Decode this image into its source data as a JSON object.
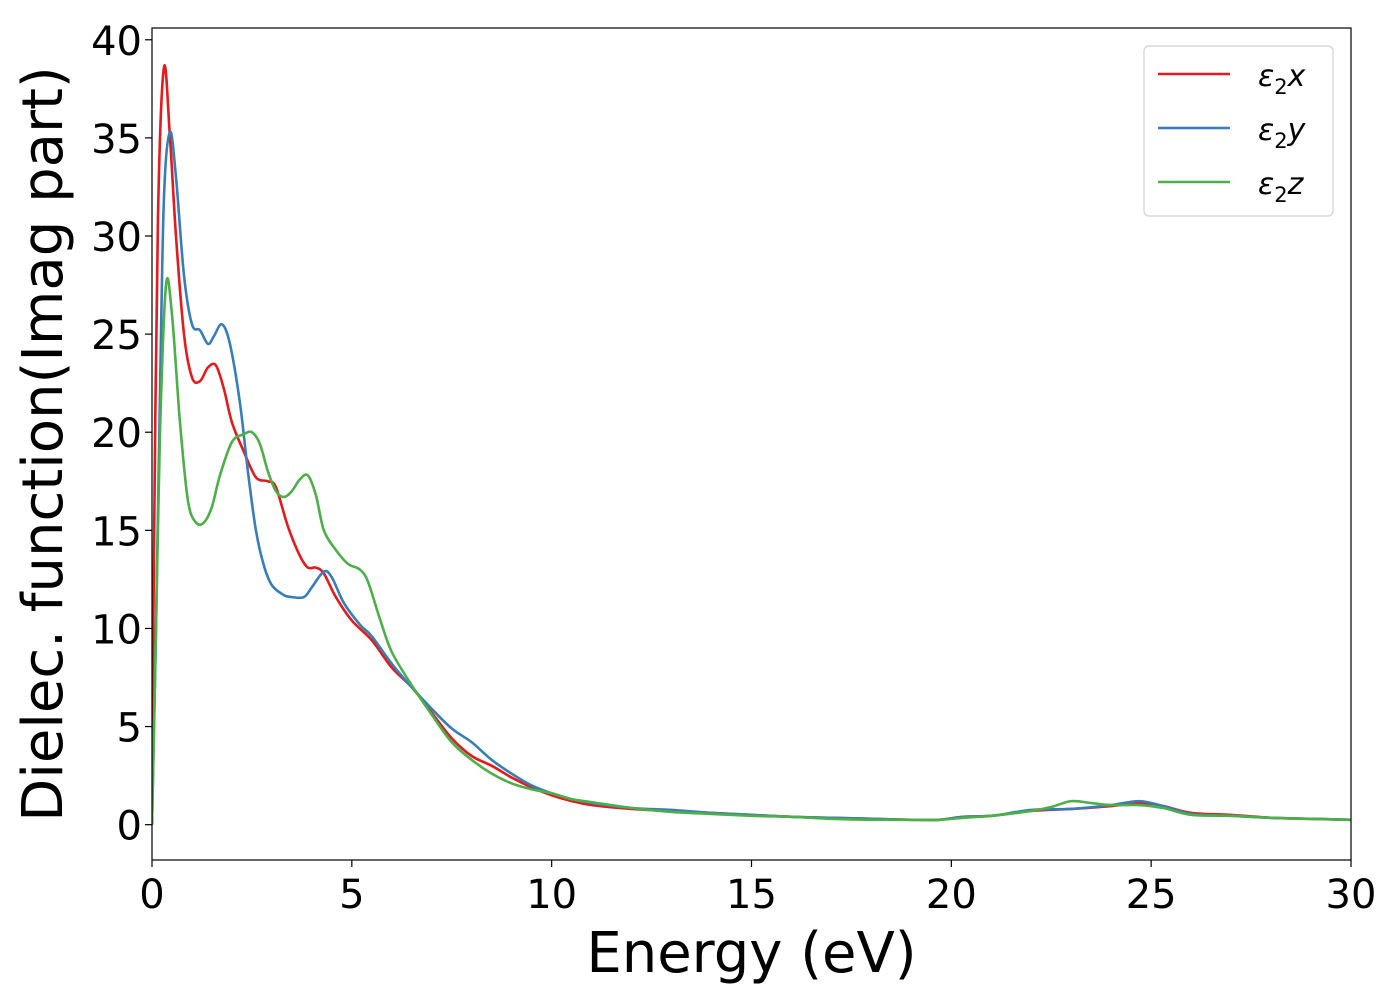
{
  "chart_data": {
    "type": "line",
    "xlabel": "Energy (eV)",
    "ylabel": "Dielec. function(Imag part)",
    "xlim": [
      0,
      30
    ],
    "ylim": [
      -1.8,
      40.6
    ],
    "xticks": [
      0,
      5,
      10,
      15,
      20,
      25,
      30
    ],
    "xtick_labels": [
      "0",
      "5",
      "10",
      "15",
      "20",
      "25",
      "30"
    ],
    "yticks": [
      0,
      5,
      10,
      15,
      20,
      25,
      30,
      35,
      40
    ],
    "ytick_labels": [
      "0",
      "5",
      "10",
      "15",
      "20",
      "25",
      "30",
      "35",
      "40"
    ],
    "grid": false,
    "legend_position": "top-right",
    "series": [
      {
        "name": "ε₂x",
        "label_base": "ε",
        "label_sub": "2",
        "label_var": "x",
        "color": "#e41a1c",
        "points": [
          [
            0,
            0
          ],
          [
            0.05,
            14
          ],
          [
            0.15,
            31
          ],
          [
            0.3,
            38.6
          ],
          [
            0.45,
            35
          ],
          [
            0.6,
            30
          ],
          [
            0.8,
            25
          ],
          [
            1.0,
            22.8
          ],
          [
            1.2,
            22.6
          ],
          [
            1.4,
            23.3
          ],
          [
            1.6,
            23.4
          ],
          [
            1.8,
            22.2
          ],
          [
            2.0,
            20.5
          ],
          [
            2.3,
            19
          ],
          [
            2.6,
            17.7
          ],
          [
            2.9,
            17.5
          ],
          [
            3.1,
            17.2
          ],
          [
            3.4,
            15.2
          ],
          [
            3.7,
            13.7
          ],
          [
            3.9,
            13.1
          ],
          [
            4.1,
            13.1
          ],
          [
            4.3,
            12.8
          ],
          [
            4.6,
            11.6
          ],
          [
            5.0,
            10.4
          ],
          [
            5.5,
            9.4
          ],
          [
            6.0,
            8.0
          ],
          [
            6.5,
            7.0
          ],
          [
            7.0,
            5.7
          ],
          [
            7.5,
            4.4
          ],
          [
            8.0,
            3.5
          ],
          [
            8.5,
            3.0
          ],
          [
            9.0,
            2.4
          ],
          [
            9.5,
            1.9
          ],
          [
            10.0,
            1.5
          ],
          [
            10.5,
            1.2
          ],
          [
            11.0,
            1.0
          ],
          [
            12.0,
            0.8
          ],
          [
            13.0,
            0.7
          ],
          [
            14.0,
            0.6
          ],
          [
            15.0,
            0.5
          ],
          [
            16.0,
            0.4
          ],
          [
            17.0,
            0.35
          ],
          [
            18.0,
            0.3
          ],
          [
            19.0,
            0.25
          ],
          [
            19.7,
            0.25
          ],
          [
            20.3,
            0.4
          ],
          [
            21.0,
            0.45
          ],
          [
            22.0,
            0.7
          ],
          [
            23.0,
            0.8
          ],
          [
            24.0,
            0.95
          ],
          [
            24.7,
            1.1
          ],
          [
            25.3,
            0.95
          ],
          [
            26.0,
            0.6
          ],
          [
            27.0,
            0.5
          ],
          [
            28.0,
            0.35
          ],
          [
            29.0,
            0.3
          ],
          [
            30.0,
            0.25
          ]
        ]
      },
      {
        "name": "ε₂y",
        "label_base": "ε",
        "label_sub": "2",
        "label_var": "y",
        "color": "#377eb8",
        "points": [
          [
            0,
            0
          ],
          [
            0.1,
            10
          ],
          [
            0.2,
            22
          ],
          [
            0.3,
            32
          ],
          [
            0.45,
            35.3
          ],
          [
            0.6,
            33
          ],
          [
            0.8,
            28
          ],
          [
            1.0,
            25.5
          ],
          [
            1.2,
            25.2
          ],
          [
            1.4,
            24.5
          ],
          [
            1.55,
            24.9
          ],
          [
            1.75,
            25.5
          ],
          [
            1.95,
            24.5
          ],
          [
            2.2,
            21.5
          ],
          [
            2.4,
            18
          ],
          [
            2.6,
            15
          ],
          [
            2.8,
            13.2
          ],
          [
            3.0,
            12.2
          ],
          [
            3.3,
            11.7
          ],
          [
            3.5,
            11.6
          ],
          [
            3.8,
            11.6
          ],
          [
            4.0,
            12.1
          ],
          [
            4.3,
            12.9
          ],
          [
            4.5,
            12.6
          ],
          [
            4.8,
            11.3
          ],
          [
            5.2,
            10.2
          ],
          [
            5.5,
            9.6
          ],
          [
            6.0,
            8.2
          ],
          [
            6.5,
            7.0
          ],
          [
            7.0,
            5.9
          ],
          [
            7.5,
            4.9
          ],
          [
            8.0,
            4.2
          ],
          [
            8.5,
            3.3
          ],
          [
            9.0,
            2.6
          ],
          [
            9.5,
            2.0
          ],
          [
            10.0,
            1.6
          ],
          [
            10.5,
            1.3
          ],
          [
            11.0,
            1.1
          ],
          [
            12.0,
            0.85
          ],
          [
            13.0,
            0.75
          ],
          [
            14.0,
            0.6
          ],
          [
            15.0,
            0.5
          ],
          [
            16.0,
            0.4
          ],
          [
            17.0,
            0.35
          ],
          [
            18.0,
            0.3
          ],
          [
            19.0,
            0.25
          ],
          [
            19.7,
            0.25
          ],
          [
            20.3,
            0.4
          ],
          [
            21.0,
            0.45
          ],
          [
            22.0,
            0.75
          ],
          [
            23.0,
            0.8
          ],
          [
            24.0,
            1.0
          ],
          [
            24.7,
            1.2
          ],
          [
            25.3,
            0.95
          ],
          [
            26.0,
            0.55
          ],
          [
            27.0,
            0.45
          ],
          [
            28.0,
            0.35
          ],
          [
            29.0,
            0.3
          ],
          [
            30.0,
            0.25
          ]
        ]
      },
      {
        "name": "ε₂z",
        "label_base": "ε",
        "label_sub": "2",
        "label_var": "z",
        "color": "#4daf4a",
        "points": [
          [
            0,
            0
          ],
          [
            0.1,
            10
          ],
          [
            0.2,
            20
          ],
          [
            0.35,
            27.5
          ],
          [
            0.5,
            26
          ],
          [
            0.7,
            20.5
          ],
          [
            0.9,
            16.5
          ],
          [
            1.1,
            15.4
          ],
          [
            1.3,
            15.4
          ],
          [
            1.5,
            16.2
          ],
          [
            1.7,
            17.8
          ],
          [
            2.0,
            19.5
          ],
          [
            2.3,
            19.9
          ],
          [
            2.5,
            20
          ],
          [
            2.7,
            19.4
          ],
          [
            2.9,
            18
          ],
          [
            3.1,
            17
          ],
          [
            3.3,
            16.7
          ],
          [
            3.5,
            17
          ],
          [
            3.7,
            17.6
          ],
          [
            3.9,
            17.8
          ],
          [
            4.1,
            16.8
          ],
          [
            4.3,
            15
          ],
          [
            4.6,
            14
          ],
          [
            4.9,
            13.3
          ],
          [
            5.2,
            13.0
          ],
          [
            5.4,
            12.4
          ],
          [
            5.7,
            10.5
          ],
          [
            6.0,
            8.8
          ],
          [
            6.5,
            7.1
          ],
          [
            7.0,
            5.6
          ],
          [
            7.5,
            4.2
          ],
          [
            8.0,
            3.3
          ],
          [
            8.5,
            2.6
          ],
          [
            9.0,
            2.1
          ],
          [
            9.5,
            1.8
          ],
          [
            10.0,
            1.6
          ],
          [
            10.5,
            1.3
          ],
          [
            11.0,
            1.15
          ],
          [
            12.0,
            0.85
          ],
          [
            13.0,
            0.65
          ],
          [
            14.0,
            0.55
          ],
          [
            15.0,
            0.45
          ],
          [
            16.0,
            0.4
          ],
          [
            17.0,
            0.3
          ],
          [
            18.0,
            0.25
          ],
          [
            19.0,
            0.25
          ],
          [
            19.7,
            0.25
          ],
          [
            20.3,
            0.35
          ],
          [
            21.0,
            0.45
          ],
          [
            22.0,
            0.7
          ],
          [
            22.5,
            0.9
          ],
          [
            23.0,
            1.2
          ],
          [
            23.5,
            1.1
          ],
          [
            24.0,
            1.0
          ],
          [
            24.7,
            1.0
          ],
          [
            25.3,
            0.85
          ],
          [
            26.0,
            0.5
          ],
          [
            27.0,
            0.45
          ],
          [
            28.0,
            0.35
          ],
          [
            29.0,
            0.3
          ],
          [
            30.0,
            0.25
          ]
        ]
      }
    ]
  }
}
